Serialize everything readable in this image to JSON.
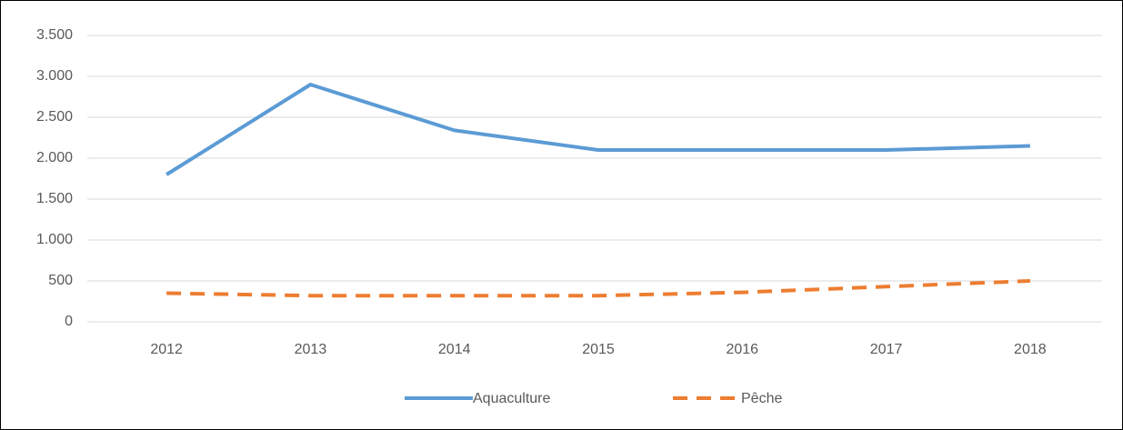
{
  "chart_data": {
    "type": "line",
    "categories": [
      "2012",
      "2013",
      "2014",
      "2015",
      "2016",
      "2017",
      "2018"
    ],
    "series": [
      {
        "name": "Aquaculture",
        "color": "#5b9bd5",
        "dash": false,
        "values": [
          1800,
          2900,
          2340,
          2100,
          2100,
          2100,
          2150
        ]
      },
      {
        "name": "Pêche",
        "color": "#ed7d31",
        "dash": true,
        "values": [
          350,
          320,
          320,
          320,
          360,
          430,
          500
        ]
      }
    ],
    "ylim": [
      0,
      3500
    ],
    "yticks": [
      0,
      500,
      {
        "value": 1000,
        "label": "1.000"
      },
      {
        "value": 1500,
        "label": "1.500"
      },
      {
        "value": 2000,
        "label": "2.000"
      },
      {
        "value": 2500,
        "label": "2.500"
      },
      {
        "value": 3000,
        "label": "3.000"
      },
      {
        "value": 3500,
        "label": "3.500"
      }
    ],
    "grid": true,
    "legend": "bottom"
  }
}
